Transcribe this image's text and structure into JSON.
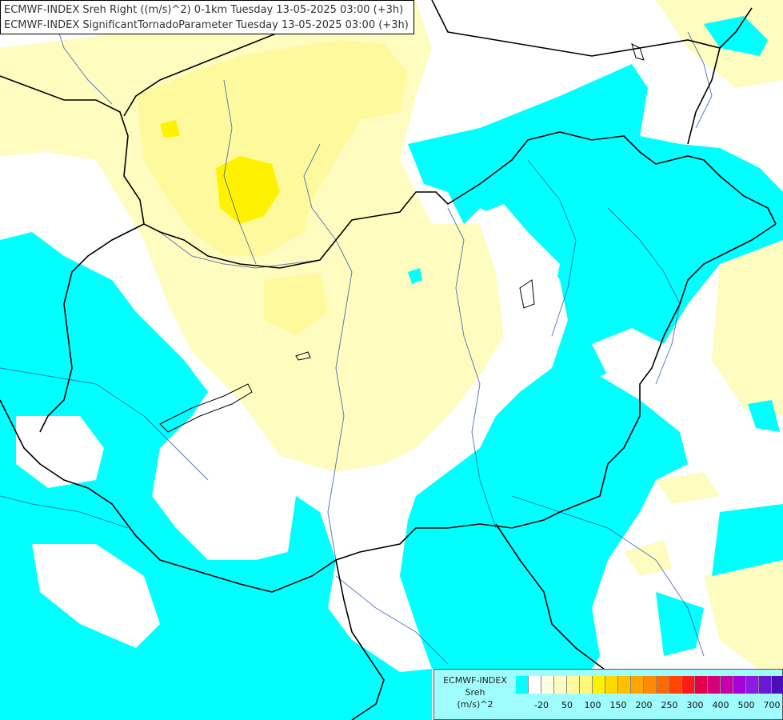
{
  "titles": [
    "ECMWF-INDEX Sreh Right ((m/s)^2) 0-1km Tuesday 13-05-2025 03:00 (+3h)",
    "ECMWF-INDEX SignificantTornadoParameter Tuesday 13-05-2025 03:00 (+3h)"
  ],
  "legend": {
    "source": "ECMWF-INDEX",
    "variable": "Sreh",
    "unit": "(m/s)^2",
    "colors": [
      "#00ffff",
      "#ffffff",
      "#ffffe0",
      "#fffcc0",
      "#fff99e",
      "#fff77a",
      "#fff200",
      "#ffd800",
      "#ffc000",
      "#ffa500",
      "#ff8c00",
      "#ff6a00",
      "#ff4500",
      "#ff1a1a",
      "#e6004c",
      "#d4007a",
      "#c800a8",
      "#a800d8",
      "#8c1ae6",
      "#6a1ad4",
      "#4b0fb8",
      "#000080"
    ],
    "tick_labels": [
      "-20",
      "50",
      "100",
      "150",
      "200",
      "250",
      "300",
      "400",
      "500",
      "700"
    ]
  },
  "map": {
    "field_colors": {
      "background": "#ffffff",
      "negative_srh": "#00ffff",
      "low_positive": "#fffcc0",
      "moderate": "#fff99e",
      "high": "#fff200"
    },
    "border_color": "#000000",
    "river_color": "#3a5da8"
  }
}
